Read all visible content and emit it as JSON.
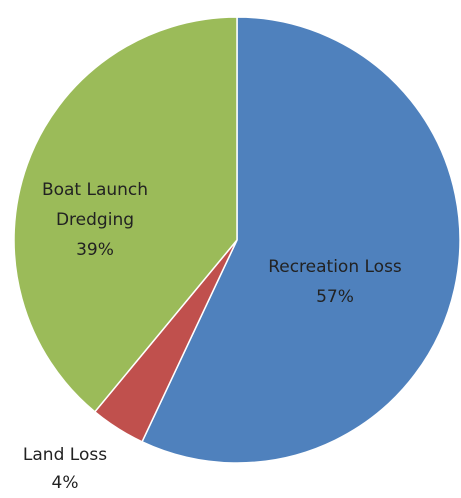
{
  "chart_data": {
    "type": "pie",
    "categories": [
      "Recreation Loss",
      "Land Loss",
      "Boat Launch Dredging"
    ],
    "values": [
      57,
      4,
      39
    ],
    "value_labels": [
      "57%",
      "4%",
      "39%"
    ],
    "colors": [
      "#4f81bd",
      "#c0504d",
      "#9bbb59"
    ]
  }
}
